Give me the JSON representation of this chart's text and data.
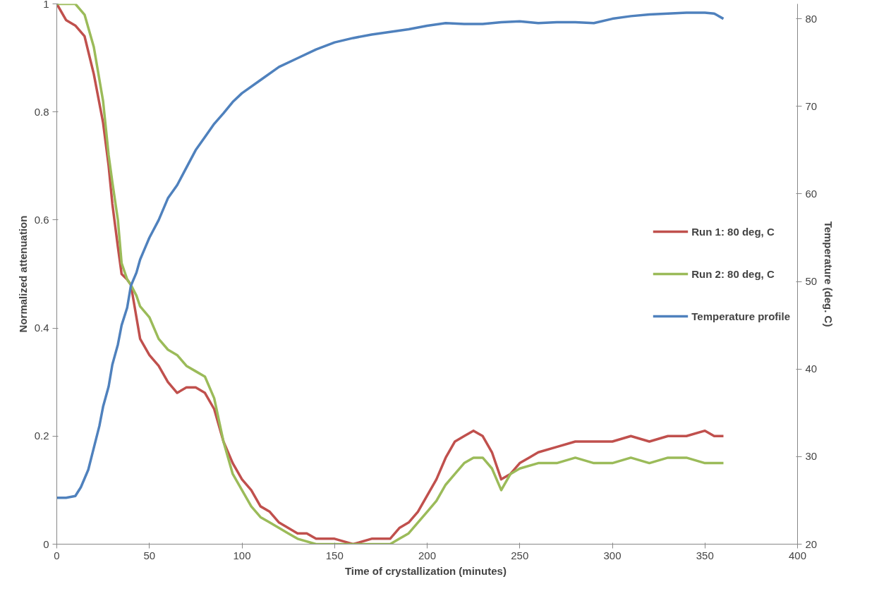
{
  "chart_data": {
    "type": "line",
    "xlabel": "Time of crystallization  (minutes)",
    "ylabel": "Normalized attenuation",
    "y2label": "Temperature (deg. C)",
    "xlim": [
      0,
      400
    ],
    "xticks": [
      0,
      50,
      100,
      150,
      200,
      250,
      300,
      350,
      400
    ],
    "ylim": [
      0,
      1
    ],
    "yticks": [
      0,
      0.2,
      0.4,
      0.6,
      0.8,
      1
    ],
    "y2lim": [
      20,
      81.7
    ],
    "y2ticks": [
      20,
      30,
      40,
      50,
      60,
      70,
      80
    ],
    "grid": false,
    "legend": "right",
    "marker": "none",
    "line_style": "solid",
    "series": [
      {
        "name": "Run 1: 80 deg, C",
        "color": "#c0504d",
        "x": [
          0,
          5,
          10,
          15,
          20,
          25,
          28,
          30,
          33,
          35,
          38,
          40,
          43,
          45,
          50,
          55,
          60,
          65,
          70,
          75,
          80,
          85,
          90,
          95,
          100,
          105,
          110,
          115,
          120,
          125,
          130,
          135,
          140,
          150,
          160,
          170,
          180,
          185,
          190,
          195,
          200,
          205,
          210,
          215,
          220,
          225,
          230,
          235,
          240,
          245,
          250,
          255,
          260,
          270,
          280,
          290,
          300,
          310,
          320,
          330,
          340,
          350,
          355,
          360
        ],
        "values": [
          1.0,
          0.97,
          0.96,
          0.94,
          0.87,
          0.78,
          0.7,
          0.63,
          0.55,
          0.5,
          0.49,
          0.48,
          0.42,
          0.38,
          0.35,
          0.33,
          0.3,
          0.28,
          0.29,
          0.29,
          0.28,
          0.25,
          0.19,
          0.15,
          0.12,
          0.1,
          0.07,
          0.06,
          0.04,
          0.03,
          0.02,
          0.02,
          0.01,
          0.01,
          0.0,
          0.01,
          0.01,
          0.03,
          0.04,
          0.06,
          0.09,
          0.12,
          0.16,
          0.19,
          0.2,
          0.21,
          0.2,
          0.17,
          0.12,
          0.13,
          0.15,
          0.16,
          0.17,
          0.18,
          0.19,
          0.19,
          0.19,
          0.2,
          0.19,
          0.2,
          0.2,
          0.21,
          0.2,
          0.2
        ]
      },
      {
        "name": "Run 2: 80 deg, C",
        "color": "#9bbb59",
        "x": [
          0,
          5,
          10,
          15,
          20,
          25,
          28,
          30,
          33,
          35,
          38,
          40,
          43,
          45,
          50,
          55,
          60,
          65,
          70,
          75,
          80,
          85,
          90,
          95,
          100,
          105,
          110,
          115,
          120,
          125,
          130,
          140,
          150,
          160,
          170,
          180,
          185,
          190,
          195,
          200,
          205,
          210,
          215,
          220,
          225,
          230,
          235,
          240,
          245,
          250,
          260,
          270,
          280,
          290,
          300,
          310,
          320,
          330,
          340,
          350,
          360
        ],
        "values": [
          1.0,
          1.0,
          1.0,
          0.98,
          0.92,
          0.82,
          0.72,
          0.67,
          0.6,
          0.52,
          0.49,
          0.48,
          0.46,
          0.44,
          0.42,
          0.38,
          0.36,
          0.35,
          0.33,
          0.32,
          0.31,
          0.27,
          0.19,
          0.13,
          0.1,
          0.07,
          0.05,
          0.04,
          0.03,
          0.02,
          0.01,
          0.0,
          0.0,
          0.0,
          0.0,
          0.0,
          0.01,
          0.02,
          0.04,
          0.06,
          0.08,
          0.11,
          0.13,
          0.15,
          0.16,
          0.16,
          0.14,
          0.1,
          0.13,
          0.14,
          0.15,
          0.15,
          0.16,
          0.15,
          0.15,
          0.16,
          0.15,
          0.16,
          0.16,
          0.15,
          0.15
        ]
      },
      {
        "name": "Temperature profile",
        "color": "#4f81bd",
        "axis": "y2",
        "x": [
          0,
          5,
          10,
          13,
          17,
          20,
          23,
          25,
          28,
          30,
          33,
          35,
          38,
          40,
          43,
          45,
          48,
          50,
          55,
          60,
          65,
          70,
          75,
          80,
          85,
          90,
          95,
          100,
          110,
          120,
          130,
          140,
          150,
          160,
          170,
          180,
          190,
          200,
          210,
          220,
          230,
          240,
          250,
          260,
          270,
          280,
          290,
          300,
          310,
          320,
          330,
          340,
          350,
          355,
          360
        ],
        "values": [
          25.3,
          25.3,
          25.5,
          26.5,
          28.5,
          31,
          33.5,
          35.7,
          38,
          40.5,
          42.8,
          45,
          47,
          49.5,
          51,
          52.5,
          54,
          55,
          57,
          59.5,
          61,
          63,
          65,
          66.5,
          68,
          69.2,
          70.5,
          71.5,
          73,
          74.5,
          75.5,
          76.5,
          77.3,
          77.8,
          78.2,
          78.5,
          78.8,
          79.2,
          79.5,
          79.4,
          79.4,
          79.6,
          79.7,
          79.5,
          79.6,
          79.6,
          79.5,
          80,
          80.3,
          80.5,
          80.6,
          80.7,
          80.7,
          80.6,
          80
        ]
      }
    ]
  }
}
